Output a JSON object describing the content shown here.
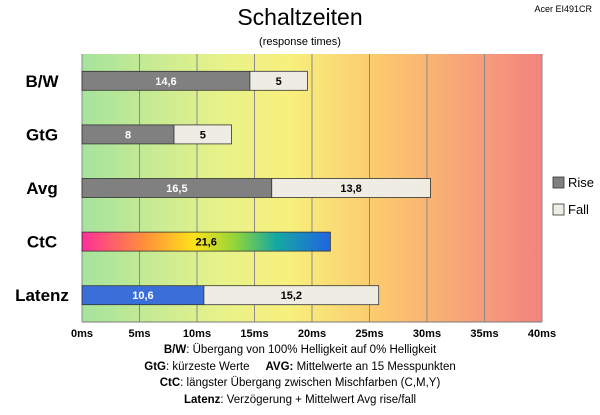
{
  "header": {
    "title": "Schaltzeiten",
    "subtitle": "(response times)",
    "model": "Acer EI491CR"
  },
  "chart_data": {
    "type": "bar",
    "orientation": "horizontal",
    "stacked": true,
    "categories": [
      "B/W",
      "GtG",
      "Avg",
      "CtC",
      "Latenz"
    ],
    "series": [
      {
        "name": "Rise",
        "values": [
          14.6,
          8,
          16.5,
          21.6,
          10.6
        ]
      },
      {
        "name": "Fall",
        "values": [
          5,
          5,
          13.8,
          null,
          15.2
        ]
      }
    ],
    "xlim": [
      0,
      40
    ],
    "x_ticks": [
      0,
      5,
      10,
      15,
      20,
      25,
      30,
      35,
      40
    ],
    "x_unit": "ms",
    "grid": "vertical",
    "legend_position": "right",
    "background": "gradient green to red",
    "bar_colors": {
      "rise": "#808080",
      "fall": "#efece3",
      "ctc": "gradient magenta-yellow-teal-blue",
      "latenz_rise": "#3a6fd8"
    }
  },
  "notes": {
    "line1_key": "B/W",
    "line1_text": ":  Übergang von 100% Helligkeit auf 0% Helligkeit",
    "line2_key_a": "GtG",
    "line2_text_a": ": kürzeste  Werte",
    "line2_key_b": "AVG:",
    "line2_text_b": " Mittelwerte  an 15 Messpunkten",
    "line3_key": "CtC",
    "line3_text": ": längster Übergang  zwischen Mischfarben (C,M,Y)",
    "line4_key": "Latenz",
    "line4_text": ": Verzögerung  + Mittelwert  Avg rise/fall"
  }
}
